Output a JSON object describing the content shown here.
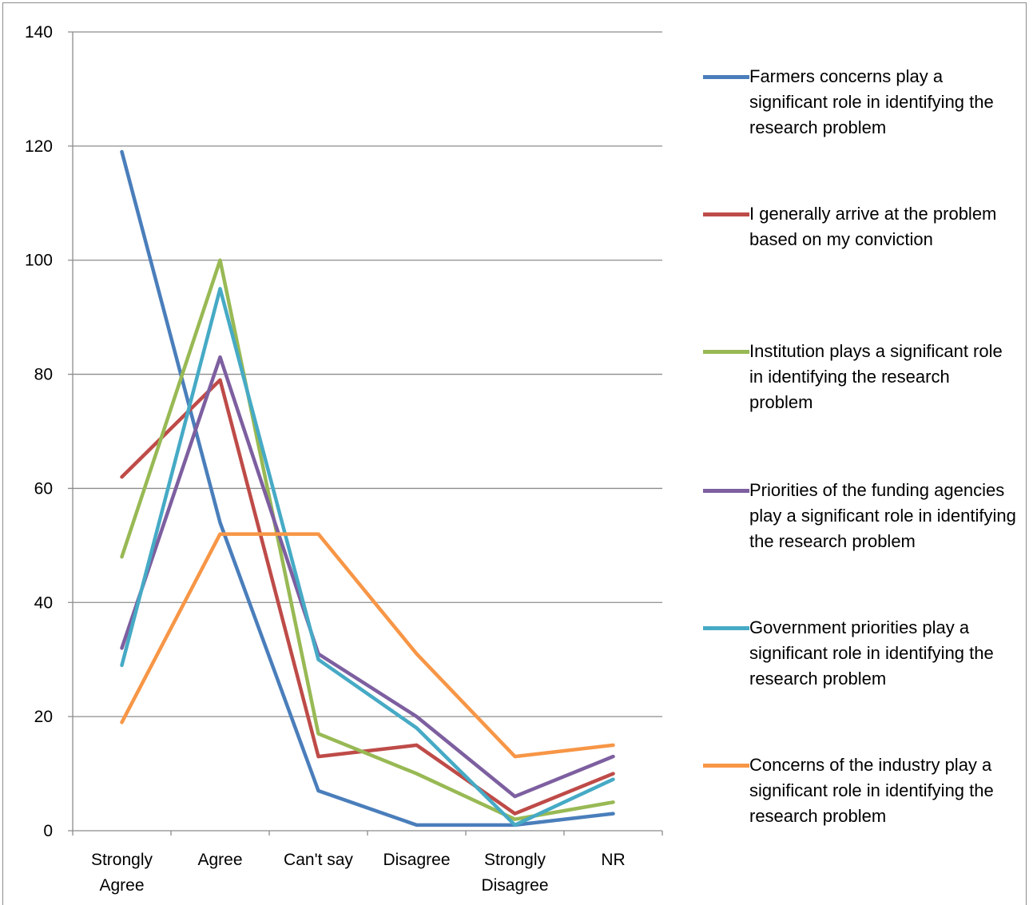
{
  "chart_data": {
    "type": "line",
    "categories": [
      "Strongly Agree",
      "Agree",
      "Can't say",
      "Disagree",
      "Strongly Disagree",
      "NR"
    ],
    "category_lines": [
      [
        "Strongly",
        "Agree"
      ],
      [
        "Agree"
      ],
      [
        "Can't say"
      ],
      [
        "Disagree"
      ],
      [
        "Strongly",
        "Disagree"
      ],
      [
        "NR"
      ]
    ],
    "ylim": [
      0,
      140
    ],
    "yticks": [
      0,
      20,
      40,
      60,
      80,
      100,
      120,
      140
    ],
    "grid": true,
    "legend_position": "right",
    "series": [
      {
        "name": "Farmers concerns play a significant role in identifying the research problem",
        "color": "#4a7ebb",
        "values": [
          119,
          54,
          7,
          1,
          1,
          3
        ]
      },
      {
        "name": "I generally arrive at the problem based on my conviction",
        "color": "#be4b48",
        "values": [
          62,
          79,
          13,
          15,
          3,
          10
        ]
      },
      {
        "name": "Institution plays a significant role in identifying the research problem",
        "color": "#98b954",
        "values": [
          48,
          100,
          17,
          10,
          2,
          5
        ]
      },
      {
        "name": "Priorities of the funding agencies play a significant role in identifying the research problem",
        "color": "#7d5fa0",
        "values": [
          32,
          83,
          31,
          20,
          6,
          13
        ]
      },
      {
        "name": "Government priorities play a significant role in identifying the research problem",
        "color": "#46aac5",
        "values": [
          29,
          95,
          30,
          18,
          1,
          9
        ]
      },
      {
        "name": "Concerns of the industry play a significant role in identifying the research problem",
        "color": "#f79646",
        "values": [
          19,
          52,
          52,
          31,
          13,
          15
        ]
      }
    ]
  }
}
